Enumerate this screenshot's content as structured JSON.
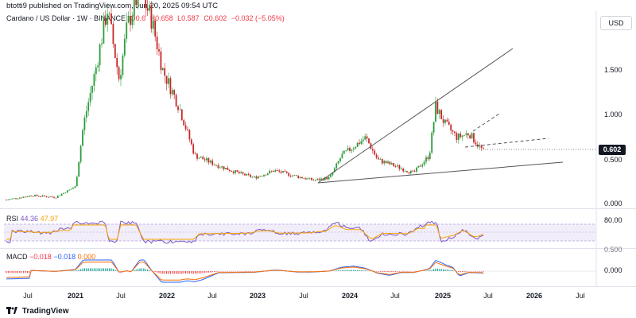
{
  "header": {
    "author_line": "btotti9 published on TradingView.com, Jun 20, 2025 09:54 UTC"
  },
  "legend": {
    "symbol": "Cardano / US Dollar · 1W · BINANCE",
    "open": "O0.6",
    "high": "H0.658",
    "low": "L0.587",
    "close": "C0.602",
    "change": "−0.032 (−5.05%)"
  },
  "currency_button": "USD",
  "price_axis": {
    "labels": [
      "1.500",
      "1.000",
      "0.500",
      "0.000"
    ],
    "current_price": "0.602"
  },
  "rsi": {
    "label": "RSI",
    "value1": "44.36",
    "value2": "47.97",
    "levels": [
      "80.00"
    ],
    "lower_level_label": "0.500"
  },
  "macd": {
    "label": "MACD",
    "value1": "−0.018",
    "value2": "−0.018",
    "value3": "0.000",
    "zero_label": "0.000"
  },
  "time_axis": {
    "labels": [
      "Jul",
      "2021",
      "Jul",
      "2022",
      "Jul",
      "2023",
      "Jul",
      "2024",
      "Jul",
      "2025",
      "Jul",
      "2026",
      "Jul"
    ],
    "bold": [
      false,
      true,
      false,
      true,
      false,
      true,
      false,
      true,
      false,
      true,
      false,
      true,
      false
    ]
  },
  "brand": "TradingView",
  "colors": {
    "up": "#26a69a",
    "down": "#ef5350",
    "candle_up": "#2a9d3a",
    "candle_down": "#c62828",
    "rsi_line": "#7e57c2",
    "rsi_ma": "#f7a600",
    "macd_line": "#2962ff",
    "signal_line": "#ff6d00"
  }
}
